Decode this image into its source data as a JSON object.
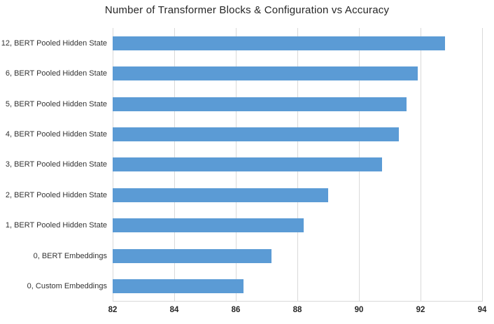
{
  "title": "Number of Transformer Blocks & Configuration vs Accuracy",
  "colors": {
    "bar": "#5b9bd5",
    "gridline": "#d9d9d9",
    "title_text": "#262626",
    "axis_text": "#333333"
  },
  "chart_data": {
    "type": "bar",
    "orientation": "horizontal",
    "title": "Number of Transformer Blocks & Configuration vs Accuracy",
    "categories": [
      "12, BERT Pooled Hidden State",
      "6, BERT Pooled Hidden State",
      "5, BERT Pooled Hidden State",
      "4, BERT Pooled Hidden State",
      "3, BERT Pooled Hidden State",
      "2, BERT Pooled Hidden State",
      "1, BERT Pooled Hidden State",
      "0, BERT Embeddings",
      "0, Custom Embeddings"
    ],
    "values": [
      92.8,
      91.9,
      91.55,
      91.3,
      90.75,
      89.0,
      88.2,
      87.15,
      86.25
    ],
    "xlabel": "",
    "ylabel": "",
    "xlim": [
      82,
      94
    ],
    "xticks": [
      82,
      84,
      86,
      88,
      90,
      92,
      94
    ],
    "grid": true,
    "legend_position": "none"
  }
}
